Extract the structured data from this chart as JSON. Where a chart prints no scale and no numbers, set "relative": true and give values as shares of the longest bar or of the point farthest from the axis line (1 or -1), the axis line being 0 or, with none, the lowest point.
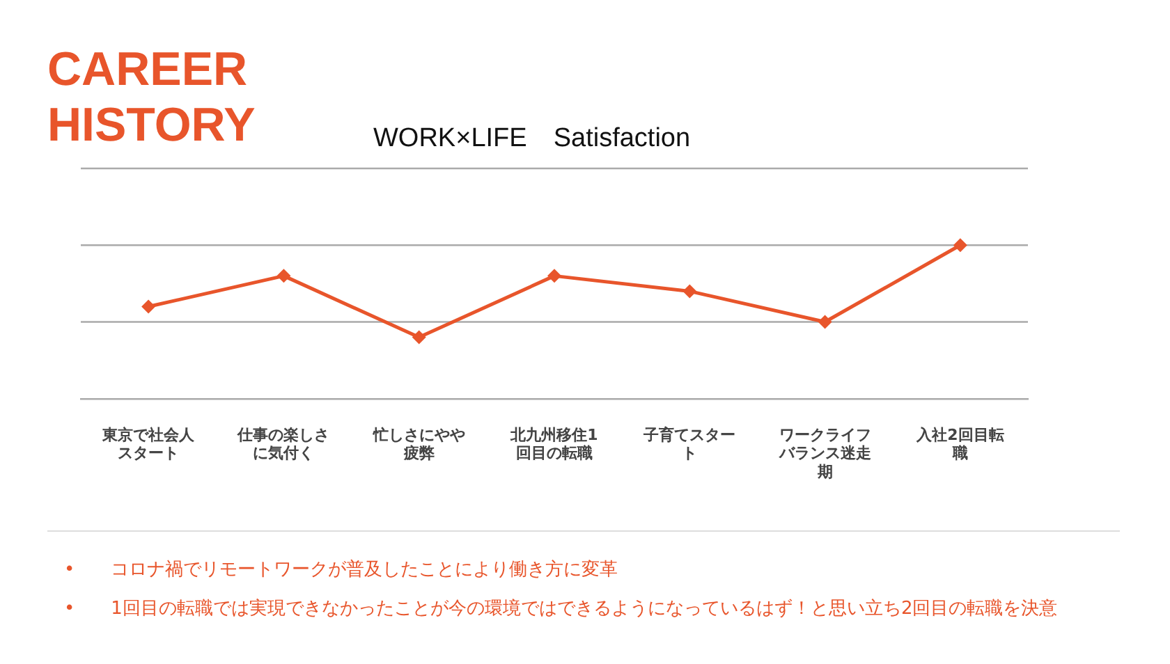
{
  "chart_data": {
    "type": "line",
    "title": "CAREER HISTORY",
    "subtitle": "WORK×LIFE　Satisfaction",
    "categories": [
      "東京で社会人スタート",
      "仕事の楽しさに気付く",
      "忙しさにやや疲弊",
      "北九州移住1回目の転職",
      "子育てスタート",
      "ワークライフバランス迷走期",
      "入社2回目転職"
    ],
    "series": [
      {
        "color": "#e8552b",
        "values": [
          0.6,
          0.8,
          0.4,
          0.8,
          0.7,
          0.5,
          1.0
        ]
      }
    ],
    "relative": true,
    "marker": "diamond",
    "line_style": "solid",
    "ref_lines": [
      {
        "axis": "y",
        "value": 0.5,
        "color": "#aaaaaa"
      },
      {
        "axis": "y",
        "value": 1,
        "color": "#aaaaaa"
      },
      {
        "axis": "y",
        "value": 1.5,
        "color": "#aaaaaa"
      }
    ],
    "annotations": [
      "•　　コロナ禍でリモートワークが普及したことにより働き方に変革",
      "•　　1回目の転職では実現できなかったことが今の環境ではできるようになっているはず！と思い立ち2回目の転職を決意"
    ]
  }
}
